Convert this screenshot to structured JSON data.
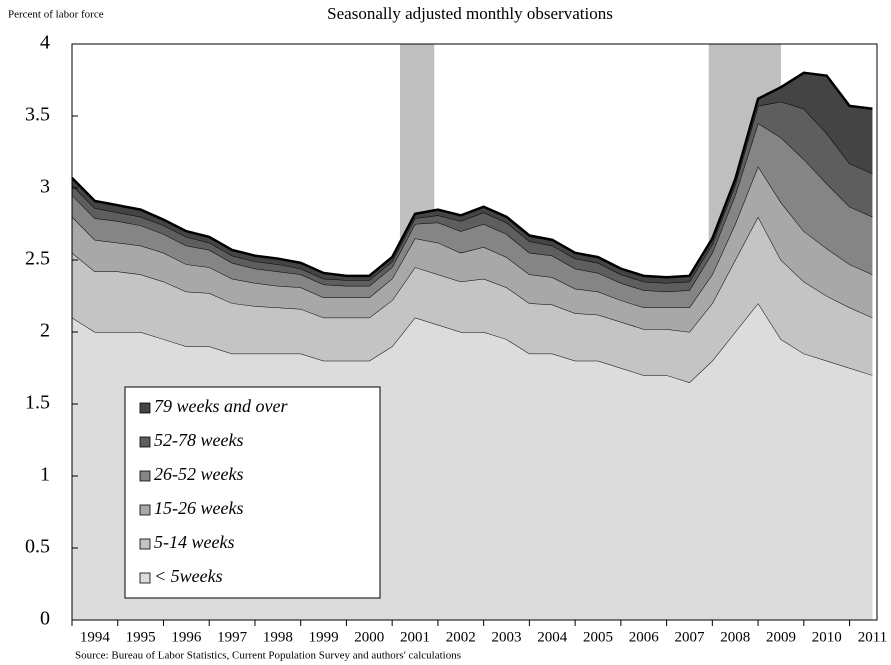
{
  "chart_data": {
    "type": "stacked_area",
    "title": "Seasonally adjusted monthly observations",
    "y_axis_label": "Percent of labor force",
    "source": "Source: Bureau of Labor Statistics, Current Population Survey and authors' calculations",
    "x": [
      1994,
      1994.5,
      1995,
      1995.5,
      1996,
      1996.5,
      1997,
      1997.5,
      1998,
      1998.5,
      1999,
      1999.5,
      2000,
      2000.5,
      2001,
      2001.5,
      2002,
      2002.5,
      2003,
      2003.5,
      2004,
      2004.5,
      2005,
      2005.5,
      2006,
      2006.5,
      2007,
      2007.5,
      2008,
      2008.5,
      2009,
      2009.5,
      2010,
      2010.5,
      2011,
      2011.5
    ],
    "series": [
      {
        "name": "< 5weeks",
        "color": "#dcdcdc",
        "values": [
          2.1,
          2.0,
          2.0,
          2.0,
          1.95,
          1.9,
          1.9,
          1.85,
          1.85,
          1.85,
          1.85,
          1.8,
          1.8,
          1.8,
          1.9,
          2.1,
          2.05,
          2.0,
          2.0,
          1.95,
          1.85,
          1.85,
          1.8,
          1.8,
          1.75,
          1.7,
          1.7,
          1.65,
          1.8,
          2.0,
          2.2,
          1.95,
          1.85,
          1.8,
          1.75,
          1.7
        ]
      },
      {
        "name": "5-14 weeks",
        "color": "#c4c4c4",
        "values": [
          0.45,
          0.42,
          0.42,
          0.4,
          0.4,
          0.38,
          0.37,
          0.35,
          0.33,
          0.32,
          0.31,
          0.3,
          0.3,
          0.3,
          0.32,
          0.35,
          0.35,
          0.35,
          0.37,
          0.36,
          0.35,
          0.34,
          0.33,
          0.32,
          0.32,
          0.32,
          0.32,
          0.35,
          0.4,
          0.5,
          0.6,
          0.55,
          0.5,
          0.45,
          0.42,
          0.4
        ]
      },
      {
        "name": "15-26 weeks",
        "color": "#a8a8a8",
        "values": [
          0.25,
          0.22,
          0.2,
          0.2,
          0.2,
          0.19,
          0.18,
          0.17,
          0.16,
          0.15,
          0.15,
          0.14,
          0.14,
          0.14,
          0.15,
          0.2,
          0.22,
          0.2,
          0.22,
          0.21,
          0.2,
          0.19,
          0.17,
          0.16,
          0.15,
          0.15,
          0.15,
          0.17,
          0.2,
          0.25,
          0.35,
          0.4,
          0.35,
          0.33,
          0.3,
          0.3
        ]
      },
      {
        "name": "26-52 weeks",
        "color": "#858585",
        "values": [
          0.15,
          0.15,
          0.15,
          0.14,
          0.13,
          0.13,
          0.12,
          0.11,
          0.1,
          0.1,
          0.09,
          0.09,
          0.08,
          0.08,
          0.08,
          0.1,
          0.14,
          0.15,
          0.16,
          0.16,
          0.15,
          0.15,
          0.14,
          0.13,
          0.12,
          0.12,
          0.11,
          0.12,
          0.15,
          0.2,
          0.3,
          0.45,
          0.5,
          0.45,
          0.4,
          0.4
        ]
      },
      {
        "name": "52-78 weeks",
        "color": "#5e5e5e",
        "values": [
          0.07,
          0.07,
          0.06,
          0.06,
          0.06,
          0.06,
          0.05,
          0.05,
          0.05,
          0.05,
          0.04,
          0.04,
          0.04,
          0.04,
          0.04,
          0.04,
          0.05,
          0.07,
          0.08,
          0.08,
          0.08,
          0.07,
          0.07,
          0.07,
          0.06,
          0.06,
          0.06,
          0.06,
          0.06,
          0.07,
          0.12,
          0.25,
          0.35,
          0.35,
          0.3,
          0.3
        ]
      },
      {
        "name": "79 weeks and over",
        "color": "#444444",
        "values": [
          0.05,
          0.05,
          0.05,
          0.05,
          0.04,
          0.04,
          0.04,
          0.04,
          0.04,
          0.04,
          0.04,
          0.04,
          0.03,
          0.03,
          0.03,
          0.03,
          0.04,
          0.04,
          0.04,
          0.04,
          0.04,
          0.04,
          0.04,
          0.04,
          0.04,
          0.04,
          0.04,
          0.04,
          0.04,
          0.04,
          0.05,
          0.1,
          0.25,
          0.4,
          0.4,
          0.45
        ]
      }
    ],
    "recessions": [
      [
        2001.17,
        2001.92
      ],
      [
        2007.92,
        2009.5
      ]
    ],
    "xlim": [
      1994,
      2011.6
    ],
    "xticks": [
      1994,
      1995,
      1996,
      1997,
      1998,
      1999,
      2000,
      2001,
      2002,
      2003,
      2004,
      2005,
      2006,
      2007,
      2008,
      2009,
      2010,
      2011
    ],
    "ylim": [
      0,
      4
    ],
    "yticks": [
      0,
      0.5,
      1,
      1.5,
      2,
      2.5,
      3,
      3.5,
      4
    ]
  }
}
